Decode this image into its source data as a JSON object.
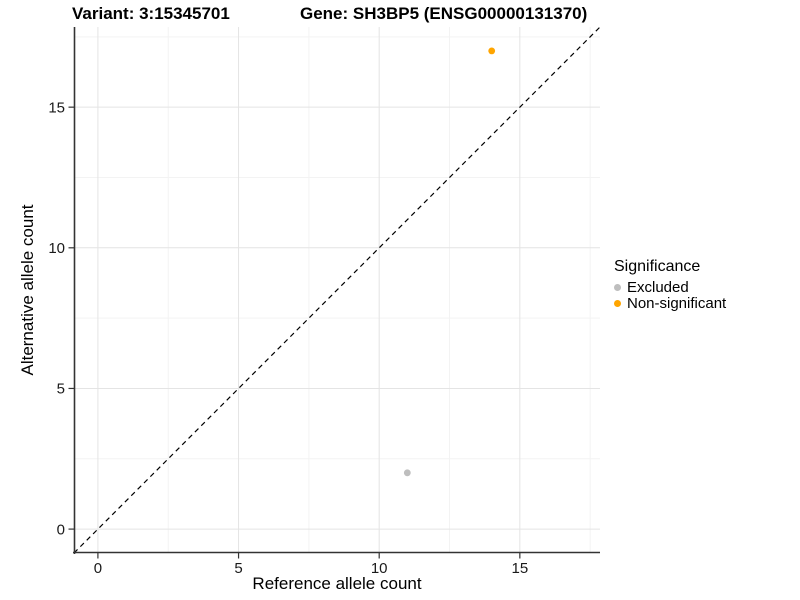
{
  "chart_data": {
    "type": "scatter",
    "titles": {
      "left": "Variant: 3:15345701",
      "right": "Gene: SH3BP5 (ENSG00000131370)"
    },
    "xlabel": "Reference allele count",
    "ylabel": "Alternative allele count",
    "xlim": [
      -0.85,
      17.85
    ],
    "ylim": [
      -0.85,
      17.85
    ],
    "major_ticks": [
      0,
      5,
      10,
      15
    ],
    "minor_gridlines": [
      2.5,
      7.5,
      12.5,
      17.5
    ],
    "grid": "on",
    "identity_line": {
      "style": "dashed",
      "color": "#000000",
      "from": [
        -0.85,
        -0.85
      ],
      "to": [
        17.85,
        17.85
      ]
    },
    "series": [
      {
        "name": "Excluded",
        "color": "#BEBEBE",
        "points": [
          [
            11,
            2
          ]
        ]
      },
      {
        "name": "Non-significant",
        "color": "#FFA500",
        "points": [
          [
            14,
            17
          ]
        ]
      }
    ],
    "legend": {
      "title": "Significance",
      "position": "right",
      "entries": [
        {
          "label": "Excluded",
          "color": "#BEBEBE"
        },
        {
          "label": "Non-significant",
          "color": "#FFA500"
        }
      ]
    },
    "colors": {
      "background": "#FFFFFF",
      "grid_major": "#E4E4E4",
      "grid_minor": "#F3F3F3",
      "axis_line": "#333333",
      "tick_text": "#1A1A1A"
    },
    "point_radius": 3.4
  }
}
